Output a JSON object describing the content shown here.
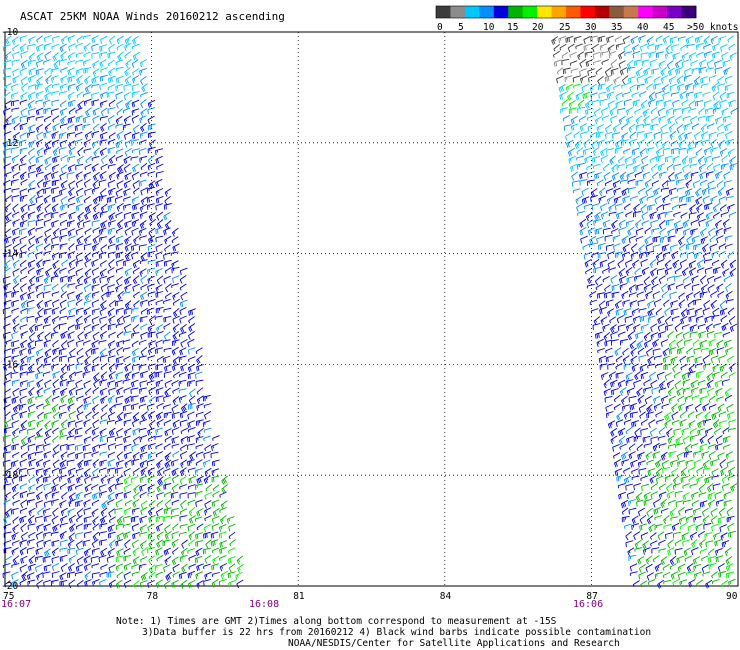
{
  "title": "ASCAT 25KM NOAA Winds 20160212 ascending",
  "legend": {
    "colors": [
      "#3c3c3c",
      "#8c8c8c",
      "#00c8ff",
      "#0090ff",
      "#0000e0",
      "#00b400",
      "#00f000",
      "#ffe600",
      "#ffa500",
      "#ff5a00",
      "#ff0000",
      "#b40000",
      "#8c5a3c",
      "#c87850",
      "#ff00ff",
      "#c800c8",
      "#7800c8",
      "#3c0078"
    ],
    "tick_labels": [
      "0",
      "5",
      "10",
      "15",
      "20",
      "25",
      "30",
      "35",
      "40",
      "45",
      ">50 knots"
    ]
  },
  "map": {
    "lat_labels": [
      "-10",
      "-12",
      "-14",
      "-16",
      "-18",
      "-20"
    ],
    "lon_labels": [
      "75",
      "78",
      "81",
      "84",
      "87",
      "90"
    ],
    "lon_range": [
      75,
      90
    ],
    "lat_range": [
      -20,
      -10
    ],
    "grid": "dotted"
  },
  "times": {
    "left_start": "16:07",
    "left_end": "16:08",
    "right_start": "16:06"
  },
  "swaths": [
    {
      "name": "west swath",
      "lon_top": [
        75,
        77.8
      ],
      "lon_bottom": [
        75,
        80.0
      ]
    },
    {
      "name": "east swath",
      "lon_top": [
        86.3,
        90
      ],
      "lon_bottom": [
        88.0,
        90
      ]
    }
  ],
  "footer": {
    "line1": "Note: 1) Times are GMT 2)Times along bottom correspond to measurement at -15S",
    "line2": "3)Data buffer is 22 hrs from 20160212 4) Black wind barbs indicate possible contamination",
    "line3": "NOAA/NESDIS/Center for Satellite Applications and Research"
  }
}
